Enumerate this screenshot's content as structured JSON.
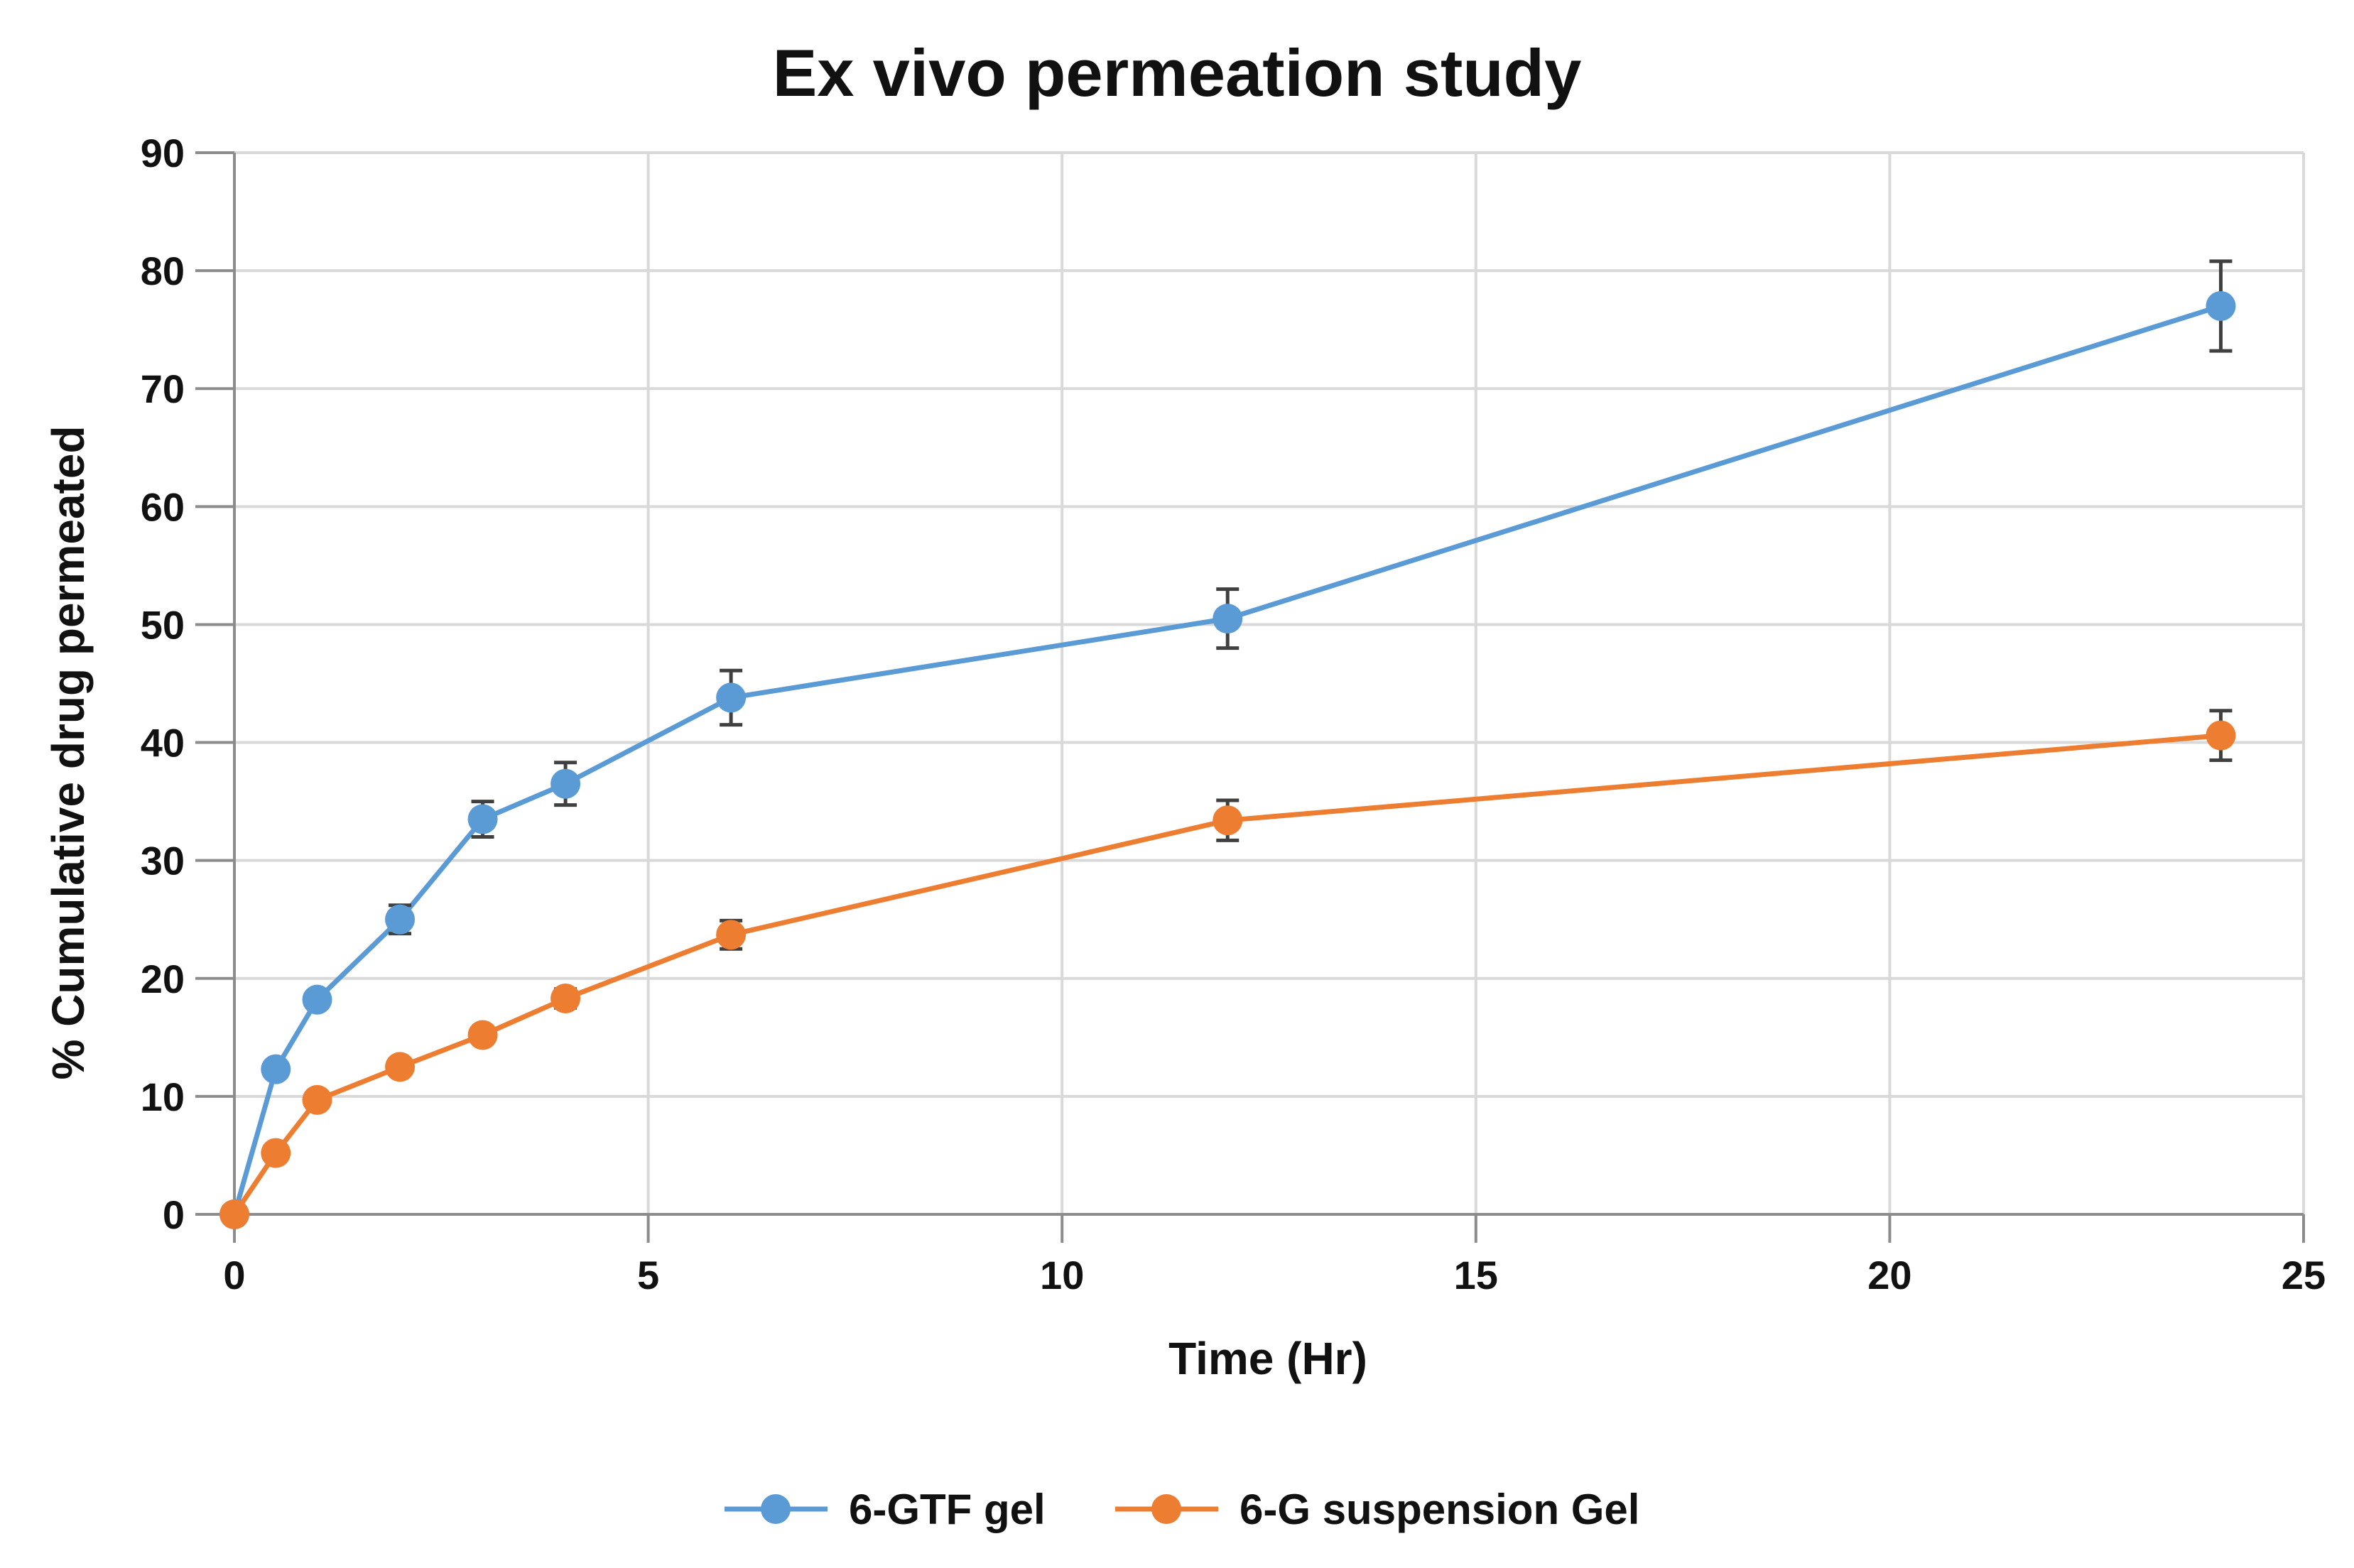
{
  "chart_data": {
    "type": "line",
    "title": "Ex vivo permeation study",
    "xlabel": "Time (Hr)",
    "ylabel": "% Cumulative drug permeated",
    "xlim": [
      0,
      25
    ],
    "ylim": [
      0,
      90
    ],
    "xticks": [
      0,
      5,
      10,
      15,
      20,
      25
    ],
    "yticks": [
      0,
      10,
      20,
      30,
      40,
      50,
      60,
      70,
      80,
      90
    ],
    "grid": true,
    "legend_position": "bottom",
    "series": [
      {
        "name": "6-GTF gel",
        "color": "#5b9bd5",
        "x": [
          0,
          0.5,
          1,
          2,
          3,
          4,
          6,
          12,
          24
        ],
        "y": [
          0,
          12.3,
          18.2,
          25,
          33.5,
          36.5,
          43.8,
          50.5,
          77
        ],
        "error": [
          0,
          0.6,
          0.6,
          1.2,
          1.5,
          1.8,
          2.3,
          2.5,
          3.8
        ]
      },
      {
        "name": "6-G suspension Gel",
        "color": "#ed7d31",
        "x": [
          0,
          0.5,
          1,
          2,
          3,
          4,
          6,
          12,
          24
        ],
        "y": [
          0,
          5.2,
          9.7,
          12.5,
          15.2,
          18.3,
          23.7,
          33.4,
          40.6
        ],
        "error": [
          0,
          0.5,
          0.6,
          0.6,
          0.6,
          0.8,
          1.2,
          1.7,
          2.1
        ]
      }
    ]
  }
}
